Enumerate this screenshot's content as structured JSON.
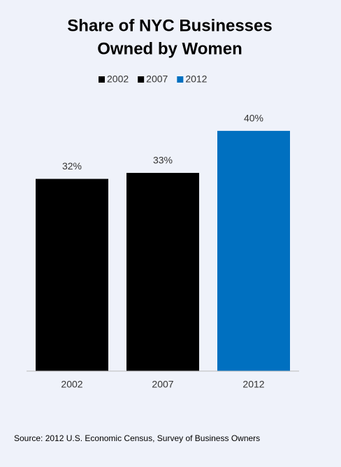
{
  "chart_data": {
    "type": "bar",
    "title": [
      "Share of NYC Businesses",
      "Owned by Women"
    ],
    "categories": [
      "2002",
      "2007",
      "2012"
    ],
    "values": [
      32,
      33,
      40
    ],
    "value_labels": [
      "32%",
      "33%",
      "40%"
    ],
    "colors": [
      "#000000",
      "#000000",
      "#0070c0"
    ],
    "ylim": [
      0,
      45
    ],
    "source": "Source: 2012 U.S. Economic Census, Survey of Business Owners"
  }
}
